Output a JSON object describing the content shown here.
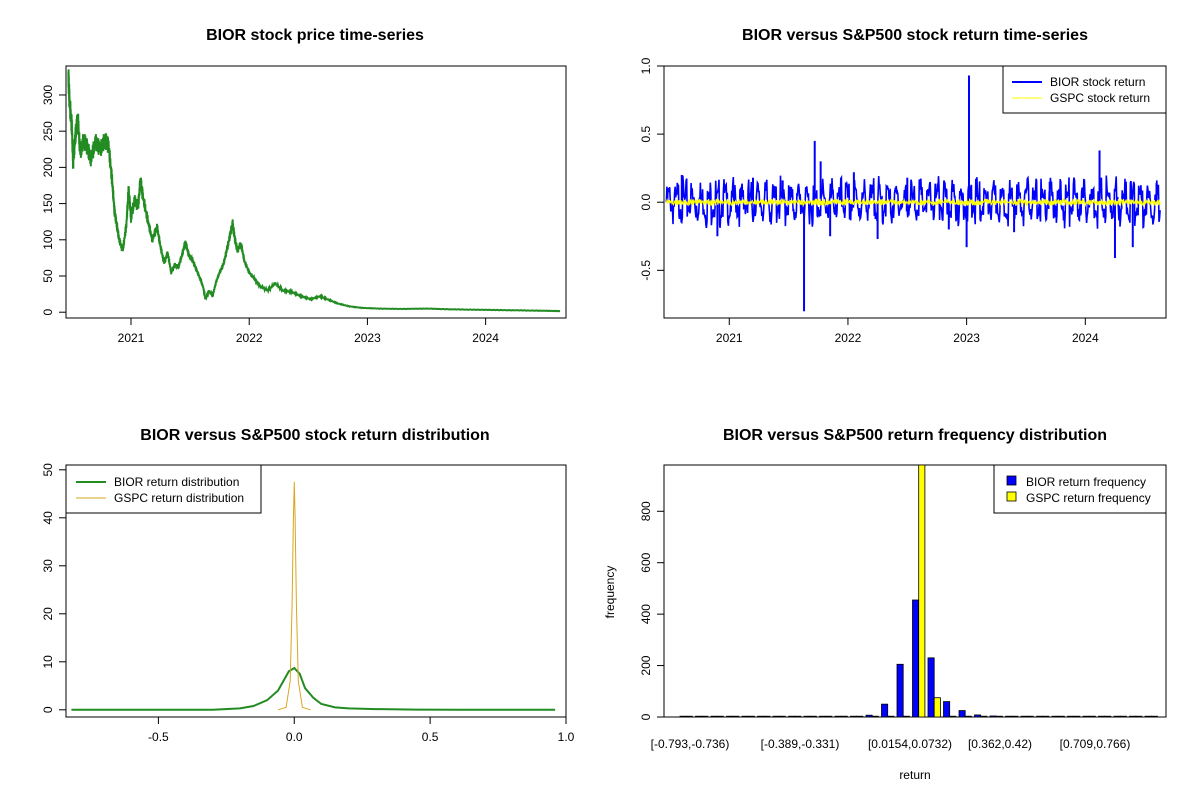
{
  "chart_data": [
    {
      "type": "line",
      "title": "BIOR stock price time-series",
      "xlabel": "",
      "ylabel": "",
      "x_ticks": [
        "2021",
        "2022",
        "2023",
        "2024"
      ],
      "y_ticks": [
        "0",
        "50",
        "100",
        "150",
        "200",
        "250",
        "300"
      ],
      "xlim": [
        2020.45,
        2024.68
      ],
      "ylim": [
        -8,
        340
      ],
      "series": [
        {
          "color": "#228B22",
          "points": [
            [
              2020.47,
              328
            ],
            [
              2020.48,
              290
            ],
            [
              2020.5,
              255
            ],
            [
              2020.51,
              205
            ],
            [
              2020.53,
              245
            ],
            [
              2020.55,
              268
            ],
            [
              2020.57,
              220
            ],
            [
              2020.6,
              238
            ],
            [
              2020.63,
              228
            ],
            [
              2020.66,
              212
            ],
            [
              2020.7,
              235
            ],
            [
              2020.74,
              225
            ],
            [
              2020.78,
              238
            ],
            [
              2020.81,
              230
            ],
            [
              2020.84,
              182
            ],
            [
              2020.86,
              140
            ],
            [
              2020.88,
              120
            ],
            [
              2020.9,
              100
            ],
            [
              2020.93,
              85
            ],
            [
              2020.96,
              120
            ],
            [
              2020.98,
              170
            ],
            [
              2021.0,
              130
            ],
            [
              2021.03,
              155
            ],
            [
              2021.06,
              145
            ],
            [
              2021.08,
              183
            ],
            [
              2021.1,
              160
            ],
            [
              2021.14,
              128
            ],
            [
              2021.18,
              100
            ],
            [
              2021.22,
              118
            ],
            [
              2021.25,
              90
            ],
            [
              2021.28,
              68
            ],
            [
              2021.31,
              82
            ],
            [
              2021.34,
              55
            ],
            [
              2021.37,
              65
            ],
            [
              2021.4,
              62
            ],
            [
              2021.43,
              78
            ],
            [
              2021.46,
              97
            ],
            [
              2021.49,
              78
            ],
            [
              2021.52,
              72
            ],
            [
              2021.55,
              60
            ],
            [
              2021.58,
              48
            ],
            [
              2021.61,
              35
            ],
            [
              2021.63,
              18
            ],
            [
              2021.66,
              30
            ],
            [
              2021.69,
              22
            ],
            [
              2021.72,
              42
            ],
            [
              2021.75,
              55
            ],
            [
              2021.78,
              65
            ],
            [
              2021.81,
              85
            ],
            [
              2021.84,
              108
            ],
            [
              2021.86,
              122
            ],
            [
              2021.88,
              100
            ],
            [
              2021.9,
              85
            ],
            [
              2021.93,
              95
            ],
            [
              2021.96,
              70
            ],
            [
              2022.0,
              55
            ],
            [
              2022.05,
              45
            ],
            [
              2022.1,
              35
            ],
            [
              2022.16,
              30
            ],
            [
              2022.22,
              40
            ],
            [
              2022.28,
              30
            ],
            [
              2022.36,
              28
            ],
            [
              2022.44,
              22
            ],
            [
              2022.52,
              18
            ],
            [
              2022.6,
              22
            ],
            [
              2022.66,
              18
            ],
            [
              2022.75,
              12
            ],
            [
              2022.85,
              8
            ],
            [
              2022.95,
              6
            ],
            [
              2023.1,
              5
            ],
            [
              2023.3,
              4.5
            ],
            [
              2023.5,
              5
            ],
            [
              2023.7,
              4
            ],
            [
              2023.9,
              3.5
            ],
            [
              2024.1,
              3
            ],
            [
              2024.3,
              2.5
            ],
            [
              2024.5,
              2
            ],
            [
              2024.63,
              1.5
            ]
          ]
        }
      ]
    },
    {
      "type": "line",
      "title": "BIOR versus S&P500 stock return time-series",
      "xlabel": "",
      "ylabel": "",
      "x_ticks": [
        "2021",
        "2022",
        "2023",
        "2024"
      ],
      "y_ticks": [
        "-0.5",
        "0.0",
        "0.5",
        "1.0"
      ],
      "xlim": [
        2020.45,
        2024.68
      ],
      "ylim": [
        -0.85,
        1.0
      ],
      "legend_position": "top-right",
      "series": [
        {
          "name": "BIOR stock return",
          "color": "#0000FF",
          "spikes": [
            [
              2020.6,
              0.2
            ],
            [
              2020.9,
              -0.25
            ],
            [
              2021.2,
              0.18
            ],
            [
              2021.45,
              0.16
            ],
            [
              2021.63,
              -0.8
            ],
            [
              2021.72,
              0.45
            ],
            [
              2021.77,
              0.3
            ],
            [
              2021.85,
              -0.25
            ],
            [
              2022.05,
              0.22
            ],
            [
              2022.25,
              -0.27
            ],
            [
              2022.5,
              0.18
            ],
            [
              2022.85,
              -0.2
            ],
            [
              2023.0,
              -0.33
            ],
            [
              2023.02,
              0.93
            ],
            [
              2023.4,
              -0.22
            ],
            [
              2023.7,
              0.15
            ],
            [
              2024.12,
              0.38
            ],
            [
              2024.25,
              -0.41
            ],
            [
              2024.4,
              -0.33
            ],
            [
              2024.6,
              0.14
            ]
          ]
        },
        {
          "name": "GSPC stock return",
          "color": "#FFFF00",
          "spikes": []
        }
      ]
    },
    {
      "type": "line",
      "title": "BIOR versus S&P500 stock return distribution",
      "xlabel": "",
      "ylabel": "",
      "x_ticks": [
        "-0.5",
        "0.0",
        "0.5",
        "1.0"
      ],
      "y_ticks": [
        "0",
        "10",
        "20",
        "30",
        "40",
        "50"
      ],
      "xlim": [
        -0.84,
        1.0
      ],
      "ylim": [
        -1.5,
        51
      ],
      "legend_position": "top-left",
      "series": [
        {
          "name": "BIOR return distribution",
          "color": "#228B22",
          "points": [
            [
              -0.82,
              0
            ],
            [
              -0.3,
              0
            ],
            [
              -0.2,
              0.3
            ],
            [
              -0.15,
              0.8
            ],
            [
              -0.1,
              2
            ],
            [
              -0.06,
              4
            ],
            [
              -0.04,
              6
            ],
            [
              -0.02,
              8
            ],
            [
              0.0,
              8.7
            ],
            [
              0.02,
              7.5
            ],
            [
              0.04,
              4.5
            ],
            [
              0.07,
              2.5
            ],
            [
              0.1,
              1.2
            ],
            [
              0.15,
              0.5
            ],
            [
              0.2,
              0.3
            ],
            [
              0.3,
              0.15
            ],
            [
              0.45,
              0.05
            ],
            [
              0.6,
              0
            ],
            [
              0.8,
              0
            ],
            [
              0.96,
              0
            ]
          ]
        },
        {
          "name": "GSPC return distribution",
          "color": "#DAA520",
          "points": [
            [
              -0.06,
              0
            ],
            [
              -0.03,
              0.5
            ],
            [
              -0.015,
              6
            ],
            [
              -0.008,
              22
            ],
            [
              -0.003,
              40
            ],
            [
              0.0,
              47.5
            ],
            [
              0.003,
              40
            ],
            [
              0.008,
              22
            ],
            [
              0.015,
              6
            ],
            [
              0.03,
              0.5
            ],
            [
              0.06,
              0
            ]
          ]
        }
      ]
    },
    {
      "type": "bar",
      "title": "BIOR versus S&P500 return frequency distribution",
      "xlabel": "return",
      "ylabel": "frequency",
      "y_ticks": [
        "0",
        "200",
        "400",
        "600",
        "800"
      ],
      "ylim": [
        0,
        980
      ],
      "x_tick_labels": [
        "[-0.793,-0.736)",
        "[-0.389,-0.331)",
        "[0.0154,0.0732)",
        "[0.362,0.42)",
        "[0.709,0.766)"
      ],
      "legend_position": "top-right",
      "series": [
        {
          "name": "BIOR return frequency",
          "color": "#0000FF",
          "values": [
            2,
            0,
            0,
            0,
            0,
            0,
            0,
            1,
            2,
            1,
            3,
            2,
            7,
            50,
            205,
            455,
            230,
            60,
            25,
            8,
            4,
            3,
            2,
            1,
            0,
            0,
            0,
            0,
            0,
            0,
            1
          ]
        },
        {
          "name": "GSPC return frequency",
          "color": "#FFFF00",
          "values": [
            0,
            0,
            0,
            0,
            0,
            0,
            0,
            0,
            0,
            0,
            0,
            0,
            0,
            0,
            0,
            980,
            75,
            0,
            0,
            0,
            0,
            0,
            0,
            0,
            0,
            0,
            0,
            0,
            0,
            0,
            0
          ]
        }
      ]
    }
  ]
}
